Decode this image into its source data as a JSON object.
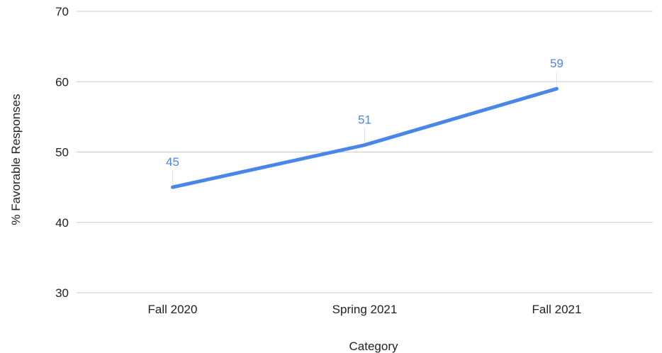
{
  "chart_data": {
    "type": "line",
    "title": "",
    "xlabel": "Category",
    "ylabel": "% Favorable Responses",
    "categories": [
      "Fall 2020",
      "Spring 2021",
      "Fall 2021"
    ],
    "series": [
      {
        "values": [
          45,
          51,
          59
        ],
        "data_labels": [
          "45",
          "51",
          "59"
        ],
        "color": "#4a86e8"
      }
    ],
    "ylim": [
      30,
      70
    ],
    "yticks": [
      30,
      40,
      50,
      60,
      70
    ],
    "ytick_labels": [
      "30",
      "40",
      "50",
      "60",
      "70"
    ],
    "grid": true,
    "legend": "none",
    "colors": {
      "line": "#4a86e8",
      "data_label": "#4a86e8",
      "gridline": "#cccccc",
      "text": "#222222"
    }
  }
}
